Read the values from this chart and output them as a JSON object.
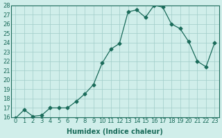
{
  "x": [
    0,
    1,
    2,
    3,
    4,
    5,
    6,
    7,
    8,
    9,
    10,
    11,
    12,
    13,
    14,
    15,
    16,
    17,
    18,
    19,
    20,
    21,
    22,
    23
  ],
  "y": [
    15.9,
    16.8,
    16.1,
    16.2,
    17.0,
    17.0,
    17.0,
    17.7,
    18.5,
    19.5,
    21.8,
    23.3,
    23.9,
    27.3,
    27.5,
    26.7,
    28.0,
    27.8,
    26.0,
    25.5,
    24.1,
    22.0,
    21.4,
    24.0
  ],
  "ylim": [
    16,
    28
  ],
  "yticks": [
    16,
    17,
    18,
    19,
    20,
    21,
    22,
    23,
    24,
    25,
    26,
    27,
    28
  ],
  "xticks": [
    0,
    1,
    2,
    3,
    4,
    5,
    6,
    7,
    8,
    9,
    10,
    11,
    12,
    13,
    14,
    15,
    16,
    17,
    18,
    19,
    20,
    21,
    22,
    23
  ],
  "xlabel": "Humidex (Indice chaleur)",
  "line_color": "#1a6b5a",
  "marker": "D",
  "marker_size": 2.5,
  "bg_color": "#d0eeea",
  "grid_color": "#a0ccc8",
  "label_fontsize": 7,
  "tick_fontsize": 6
}
